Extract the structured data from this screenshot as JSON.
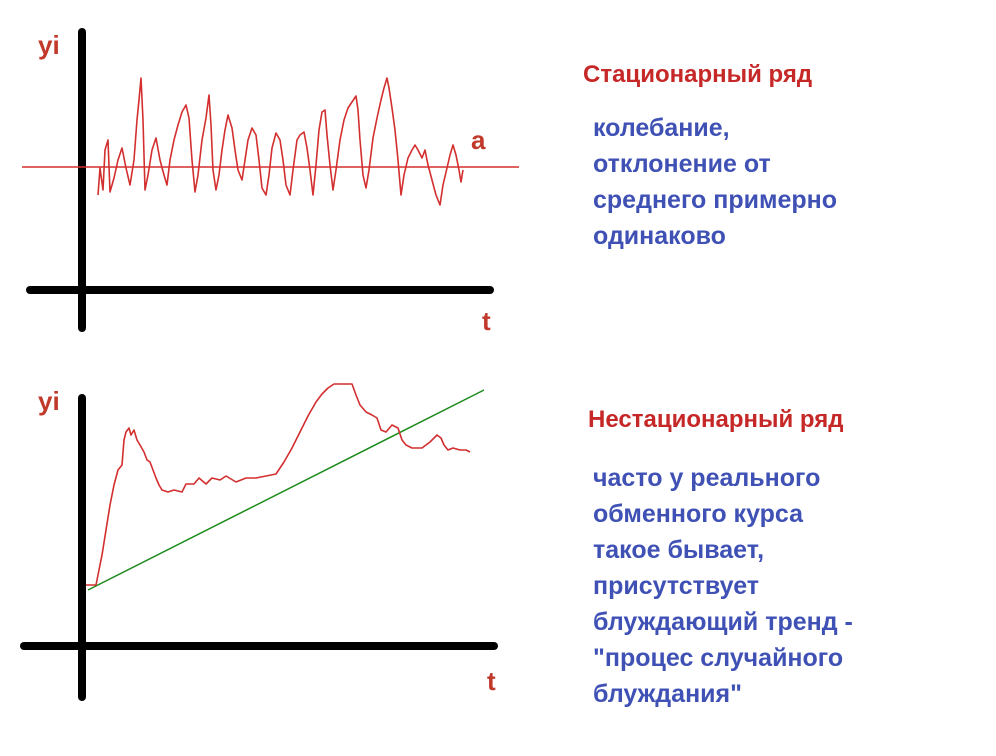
{
  "top_panel": {
    "y_label": "yi",
    "x_label": "t",
    "mean_label": "a",
    "heading": "Стационарный ряд",
    "description_lines": [
      "колебание,",
      "отклонение от",
      "среднего примерно",
      "одинаково"
    ]
  },
  "bottom_panel": {
    "y_label": "yi",
    "x_label": "t",
    "heading": "Нестационарный ряд",
    "description_lines": [
      "часто у реального",
      "обменного курса",
      "такое бывает,",
      "присутствует",
      "блуждающий тренд -",
      "\"процес случайного",
      "блуждания\""
    ]
  },
  "colors": {
    "axes": "#000000",
    "series": "#d32f2f",
    "mean_line": "#d32f2f",
    "trend_line": "#1b8a1b",
    "heading": "#c62828",
    "description": "#3f51b5"
  }
}
